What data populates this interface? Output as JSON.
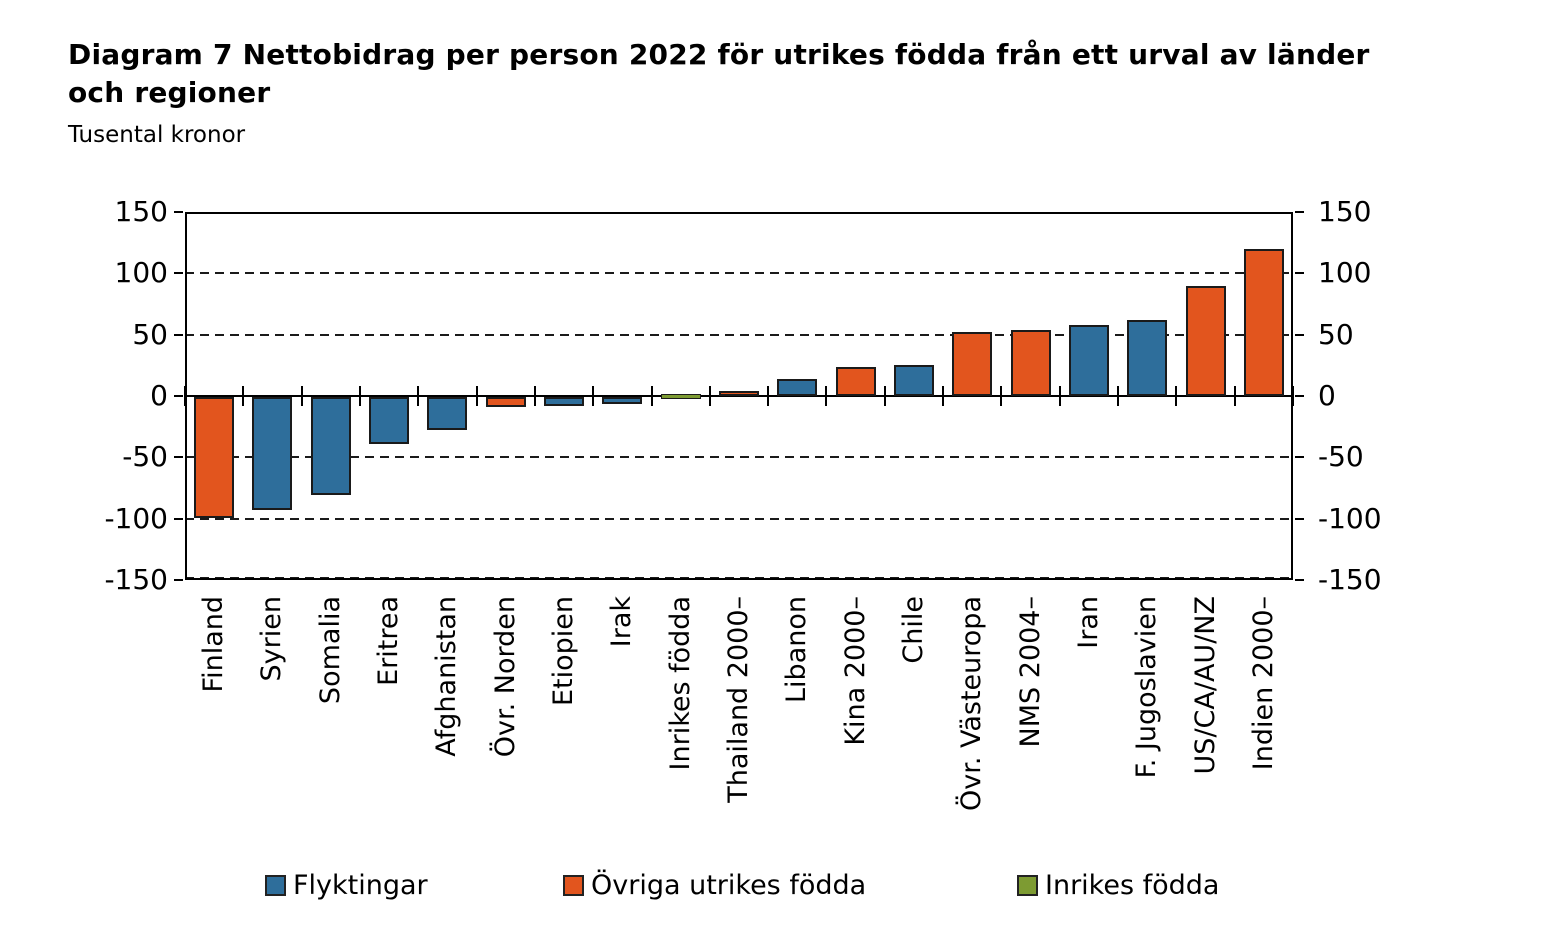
{
  "page": {
    "title_lines": [
      "Diagram 7 Nettobidrag per person 2022 för utrikes födda från ett urval av länder",
      "och regioner"
    ],
    "subtitle": "Tusental kronor"
  },
  "chart_data": {
    "type": "bar",
    "title": "Diagram 7 Nettobidrag per person 2022 för utrikes födda från ett urval av länder och regioner",
    "ylabel": "Tusental kronor",
    "xlabel": "",
    "ylim": [
      -150,
      150
    ],
    "yticks": [
      150,
      100,
      50,
      0,
      -50,
      -100,
      -150
    ],
    "gridlines_dashed_at": [
      100,
      50,
      -50,
      -100,
      -150
    ],
    "grid": "horizontal dashed",
    "legend_position": "bottom",
    "legend": [
      {
        "label": "Flyktingar",
        "color": "#2E6E9B"
      },
      {
        "label": "Övriga utrikes födda",
        "color": "#E2551E"
      },
      {
        "label": "Inrikes födda",
        "color": "#7D9B32"
      }
    ],
    "bars": [
      {
        "category": "Finland",
        "value": -99,
        "series": "Övriga utrikes födda"
      },
      {
        "category": "Syrien",
        "value": -92,
        "series": "Flyktingar"
      },
      {
        "category": "Somalia",
        "value": -80,
        "series": "Flyktingar"
      },
      {
        "category": "Eritrea",
        "value": -38,
        "series": "Flyktingar"
      },
      {
        "category": "Afghanistan",
        "value": -27,
        "series": "Flyktingar"
      },
      {
        "category": "Övr. Norden",
        "value": -8,
        "series": "Övriga utrikes födda"
      },
      {
        "category": "Etiopien",
        "value": -7,
        "series": "Flyktingar"
      },
      {
        "category": "Irak",
        "value": -6,
        "series": "Flyktingar"
      },
      {
        "category": "Inrikes födda",
        "value": 0,
        "series": "Inrikes födda"
      },
      {
        "category": "Thailand 2000–",
        "value": 4,
        "series": "Övriga utrikes födda"
      },
      {
        "category": "Libanon",
        "value": 14,
        "series": "Flyktingar"
      },
      {
        "category": "Kina 2000–",
        "value": 24,
        "series": "Övriga utrikes födda"
      },
      {
        "category": "Chile",
        "value": 25,
        "series": "Flyktingar"
      },
      {
        "category": "Övr. Västeuropa",
        "value": 52,
        "series": "Övriga utrikes födda"
      },
      {
        "category": "NMS 2004–",
        "value": 54,
        "series": "Övriga utrikes födda"
      },
      {
        "category": "Iran",
        "value": 58,
        "series": "Flyktingar"
      },
      {
        "category": "F. Jugoslavien",
        "value": 62,
        "series": "Flyktingar"
      },
      {
        "category": "US/CA/AU/NZ",
        "value": 90,
        "series": "Övriga utrikes födda"
      },
      {
        "category": "Indien 2000–",
        "value": 120,
        "series": "Övriga utrikes födda"
      }
    ],
    "legend_x_positions": [
      265,
      563,
      1017
    ]
  }
}
